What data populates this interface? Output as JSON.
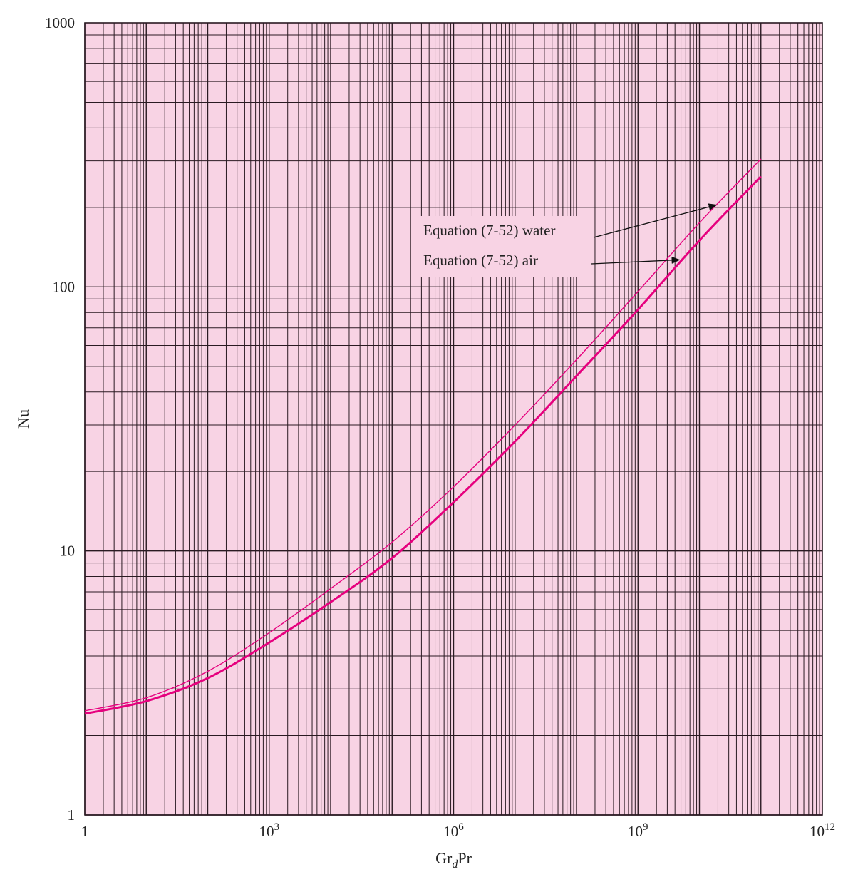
{
  "chart_data": {
    "type": "line",
    "title": "",
    "xlabel": {
      "base": "Gr",
      "sub": "d",
      "rest": "Pr"
    },
    "ylabel": "Nu",
    "xscale": "log",
    "yscale": "log",
    "xlim": [
      1,
      1000000000000
    ],
    "ylim": [
      1,
      1000
    ],
    "grid": true,
    "background_color": "#f8d3e4",
    "grid_color": "#2a1a22",
    "x_ticks": [
      {
        "value": 1,
        "label": "1"
      },
      {
        "value": 1000,
        "label": "10",
        "sup": "3"
      },
      {
        "value": 1000000,
        "label": "10",
        "sup": "6"
      },
      {
        "value": 1000000000,
        "label": "10",
        "sup": "9"
      },
      {
        "value": 1000000000000,
        "label": "10",
        "sup": "12"
      }
    ],
    "y_ticks": [
      {
        "value": 1,
        "label": "1"
      },
      {
        "value": 10,
        "label": "10"
      },
      {
        "value": 100,
        "label": "100"
      },
      {
        "value": 1000,
        "label": "1000"
      }
    ],
    "series": [
      {
        "name": "Equation (7-52) water",
        "color": "#e6007e",
        "width": "thin",
        "x": [
          1,
          10,
          100,
          1000,
          10000,
          100000,
          1000000,
          10000000,
          100000000,
          1000000000,
          10000000000,
          100000000000
        ],
        "y": [
          2.48,
          2.78,
          3.5,
          4.9,
          7.2,
          10.8,
          17.5,
          30,
          53,
          96,
          175,
          305
        ]
      },
      {
        "name": "Equation (7-52) air",
        "color": "#e6007e",
        "width": "thick",
        "x": [
          1,
          10,
          100,
          1000,
          10000,
          100000,
          1000000,
          10000000,
          100000000,
          1000000000,
          10000000000,
          100000000000
        ],
        "y": [
          2.42,
          2.7,
          3.3,
          4.5,
          6.4,
          9.4,
          15.3,
          26,
          46,
          82,
          150,
          262
        ]
      }
    ],
    "annotations": [
      {
        "text": "Equation (7-52) water",
        "series": 0,
        "arrow_to_x": 20000000000
      },
      {
        "text": "Equation (7-52) air",
        "series": 1,
        "arrow_to_x": 5000000000
      }
    ]
  }
}
